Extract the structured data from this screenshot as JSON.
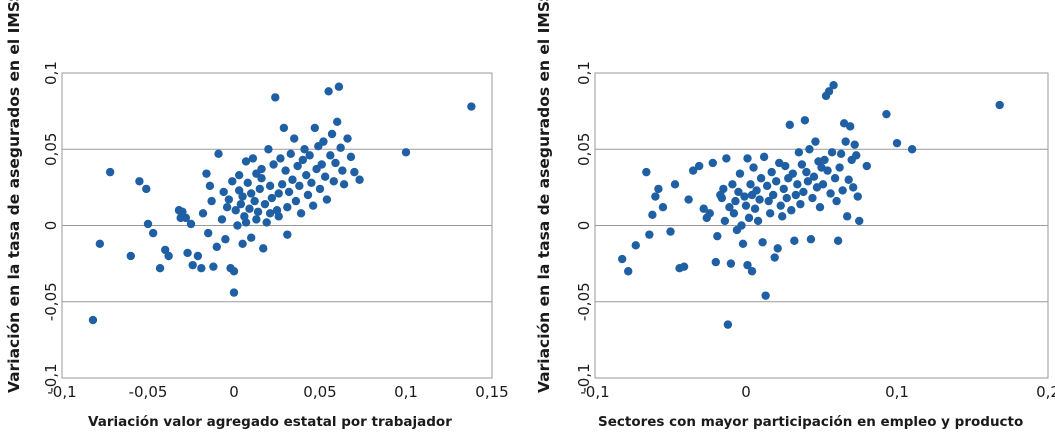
{
  "chart_data": [
    {
      "type": "scatter",
      "xlabel": "Variación valor agregado estatal por trabajador",
      "ylabel": "Variación en la tasa de asegurados en el IMSS",
      "xlim": [
        -0.1,
        0.15
      ],
      "ylim": [
        -0.1,
        0.1
      ],
      "xticks": [
        -0.1,
        -0.05,
        0,
        0.05,
        0.1,
        0.15
      ],
      "yticks": [
        -0.1,
        -0.05,
        0,
        0.05,
        0.1
      ],
      "xtick_labels": [
        "-0,1",
        "-0,05",
        "0",
        "0,05",
        "0,1",
        "0,15"
      ],
      "ytick_labels": [
        "-0,1",
        "-0,05",
        "0",
        "0,05",
        "0,1"
      ],
      "grid": "horizontal",
      "marker_color": "#1f5fa3",
      "points": [
        [
          -0.082,
          -0.062
        ],
        [
          -0.078,
          -0.012
        ],
        [
          -0.072,
          0.035
        ],
        [
          -0.06,
          -0.02
        ],
        [
          -0.055,
          0.029
        ],
        [
          -0.051,
          0.024
        ],
        [
          -0.05,
          0.001
        ],
        [
          -0.047,
          -0.005
        ],
        [
          -0.043,
          -0.028
        ],
        [
          -0.04,
          -0.016
        ],
        [
          -0.038,
          -0.02
        ],
        [
          -0.032,
          0.01
        ],
        [
          -0.031,
          0.005
        ],
        [
          -0.03,
          0.009
        ],
        [
          -0.028,
          0.005
        ],
        [
          -0.027,
          -0.018
        ],
        [
          -0.025,
          0.001
        ],
        [
          -0.024,
          -0.026
        ],
        [
          -0.021,
          -0.02
        ],
        [
          -0.019,
          -0.028
        ],
        [
          -0.018,
          0.008
        ],
        [
          -0.016,
          0.034
        ],
        [
          -0.015,
          -0.005
        ],
        [
          -0.014,
          0.026
        ],
        [
          -0.013,
          0.016
        ],
        [
          -0.012,
          -0.027
        ],
        [
          -0.01,
          -0.014
        ],
        [
          -0.009,
          0.047
        ],
        [
          -0.007,
          0.004
        ],
        [
          -0.006,
          0.022
        ],
        [
          -0.005,
          -0.009
        ],
        [
          -0.004,
          0.012
        ],
        [
          -0.003,
          0.017
        ],
        [
          -0.002,
          -0.028
        ],
        [
          -0.001,
          0.029
        ],
        [
          0.0,
          -0.044
        ],
        [
          0.0,
          -0.03
        ],
        [
          0.001,
          0.01
        ],
        [
          0.002,
          0.0
        ],
        [
          0.003,
          0.023
        ],
        [
          0.003,
          0.033
        ],
        [
          0.004,
          0.014
        ],
        [
          0.005,
          0.019
        ],
        [
          0.005,
          -0.012
        ],
        [
          0.006,
          0.006
        ],
        [
          0.007,
          0.002
        ],
        [
          0.007,
          0.042
        ],
        [
          0.008,
          0.028
        ],
        [
          0.009,
          0.011
        ],
        [
          0.01,
          0.021
        ],
        [
          0.01,
          -0.008
        ],
        [
          0.011,
          0.044
        ],
        [
          0.012,
          0.016
        ],
        [
          0.013,
          0.034
        ],
        [
          0.013,
          0.004
        ],
        [
          0.014,
          0.009
        ],
        [
          0.015,
          0.024
        ],
        [
          0.016,
          0.031
        ],
        [
          0.016,
          0.037
        ],
        [
          0.017,
          -0.015
        ],
        [
          0.018,
          0.014
        ],
        [
          0.019,
          0.002
        ],
        [
          0.02,
          0.05
        ],
        [
          0.021,
          0.026
        ],
        [
          0.021,
          0.008
        ],
        [
          0.022,
          0.018
        ],
        [
          0.023,
          0.04
        ],
        [
          0.024,
          0.084
        ],
        [
          0.025,
          0.01
        ],
        [
          0.026,
          0.021
        ],
        [
          0.026,
          0.006
        ],
        [
          0.027,
          0.044
        ],
        [
          0.028,
          0.027
        ],
        [
          0.029,
          0.064
        ],
        [
          0.03,
          0.036
        ],
        [
          0.031,
          0.012
        ],
        [
          0.031,
          -0.006
        ],
        [
          0.032,
          0.022
        ],
        [
          0.033,
          0.047
        ],
        [
          0.034,
          0.03
        ],
        [
          0.035,
          0.057
        ],
        [
          0.036,
          0.016
        ],
        [
          0.037,
          0.039
        ],
        [
          0.038,
          0.026
        ],
        [
          0.039,
          0.008
        ],
        [
          0.04,
          0.043
        ],
        [
          0.041,
          0.05
        ],
        [
          0.042,
          0.033
        ],
        [
          0.043,
          0.02
        ],
        [
          0.044,
          0.046
        ],
        [
          0.045,
          0.028
        ],
        [
          0.046,
          0.013
        ],
        [
          0.047,
          0.064
        ],
        [
          0.048,
          0.037
        ],
        [
          0.049,
          0.052
        ],
        [
          0.05,
          0.024
        ],
        [
          0.051,
          0.04
        ],
        [
          0.052,
          0.055
        ],
        [
          0.053,
          0.032
        ],
        [
          0.054,
          0.017
        ],
        [
          0.055,
          0.088
        ],
        [
          0.056,
          0.046
        ],
        [
          0.057,
          0.06
        ],
        [
          0.058,
          0.029
        ],
        [
          0.059,
          0.041
        ],
        [
          0.06,
          0.068
        ],
        [
          0.061,
          0.091
        ],
        [
          0.062,
          0.051
        ],
        [
          0.063,
          0.036
        ],
        [
          0.064,
          0.027
        ],
        [
          0.066,
          0.057
        ],
        [
          0.068,
          0.045
        ],
        [
          0.07,
          0.035
        ],
        [
          0.073,
          0.03
        ],
        [
          0.1,
          0.048
        ],
        [
          0.138,
          0.078
        ]
      ]
    },
    {
      "type": "scatter",
      "xlabel": "Sectores con mayor participación en empleo y producto",
      "ylabel": "Variación en la tasa de asegurados en el IMSS",
      "xlim": [
        -0.1,
        0.2
      ],
      "ylim": [
        -0.1,
        0.1
      ],
      "xticks": [
        -0.1,
        0,
        0.1,
        0.2
      ],
      "yticks": [
        -0.1,
        -0.05,
        0,
        0.05,
        0.1
      ],
      "xtick_labels": [
        "-0,1",
        "0",
        "0,1",
        "0,2"
      ],
      "ytick_labels": [
        "-0,1",
        "-0,05",
        "0",
        "0,05",
        "0,1"
      ],
      "grid": "horizontal",
      "marker_color": "#1f5fa3",
      "points": [
        [
          -0.082,
          -0.022
        ],
        [
          -0.078,
          -0.03
        ],
        [
          -0.073,
          -0.013
        ],
        [
          -0.066,
          0.035
        ],
        [
          -0.064,
          -0.006
        ],
        [
          -0.062,
          0.007
        ],
        [
          -0.06,
          0.019
        ],
        [
          -0.058,
          0.024
        ],
        [
          -0.055,
          0.012
        ],
        [
          -0.05,
          -0.004
        ],
        [
          -0.047,
          0.027
        ],
        [
          -0.044,
          -0.028
        ],
        [
          -0.041,
          -0.027
        ],
        [
          -0.038,
          0.017
        ],
        [
          -0.035,
          0.036
        ],
        [
          -0.031,
          0.039
        ],
        [
          -0.028,
          0.011
        ],
        [
          -0.026,
          0.005
        ],
        [
          -0.024,
          0.008
        ],
        [
          -0.022,
          0.041
        ],
        [
          -0.02,
          -0.024
        ],
        [
          -0.019,
          -0.007
        ],
        [
          -0.017,
          0.02
        ],
        [
          -0.016,
          0.018
        ],
        [
          -0.015,
          0.024
        ],
        [
          -0.014,
          0.003
        ],
        [
          -0.013,
          0.044
        ],
        [
          -0.012,
          -0.065
        ],
        [
          -0.011,
          0.012
        ],
        [
          -0.01,
          -0.025
        ],
        [
          -0.009,
          0.027
        ],
        [
          -0.008,
          0.008
        ],
        [
          -0.007,
          0.016
        ],
        [
          -0.006,
          -0.003
        ],
        [
          -0.005,
          0.022
        ],
        [
          -0.004,
          0.034
        ],
        [
          -0.003,
          0.0
        ],
        [
          -0.002,
          -0.012
        ],
        [
          -0.001,
          0.019
        ],
        [
          0.0,
          0.013
        ],
        [
          0.001,
          0.044
        ],
        [
          0.001,
          -0.026
        ],
        [
          0.002,
          0.005
        ],
        [
          0.003,
          0.027
        ],
        [
          0.004,
          0.02
        ],
        [
          0.004,
          -0.03
        ],
        [
          0.005,
          0.038
        ],
        [
          0.006,
          0.011
        ],
        [
          0.007,
          0.023
        ],
        [
          0.008,
          0.003
        ],
        [
          0.009,
          0.017
        ],
        [
          0.01,
          0.031
        ],
        [
          0.011,
          -0.011
        ],
        [
          0.012,
          0.045
        ],
        [
          0.013,
          -0.046
        ],
        [
          0.014,
          0.026
        ],
        [
          0.015,
          0.016
        ],
        [
          0.016,
          0.008
        ],
        [
          0.017,
          0.035
        ],
        [
          0.018,
          0.02
        ],
        [
          0.019,
          -0.021
        ],
        [
          0.02,
          0.029
        ],
        [
          0.021,
          -0.015
        ],
        [
          0.022,
          0.041
        ],
        [
          0.023,
          0.013
        ],
        [
          0.024,
          0.006
        ],
        [
          0.025,
          0.024
        ],
        [
          0.026,
          0.039
        ],
        [
          0.027,
          0.018
        ],
        [
          0.028,
          0.031
        ],
        [
          0.029,
          0.066
        ],
        [
          0.03,
          0.01
        ],
        [
          0.031,
          0.034
        ],
        [
          0.032,
          -0.01
        ],
        [
          0.033,
          0.02
        ],
        [
          0.034,
          0.027
        ],
        [
          0.035,
          0.048
        ],
        [
          0.036,
          0.014
        ],
        [
          0.037,
          0.04
        ],
        [
          0.038,
          0.022
        ],
        [
          0.039,
          0.069
        ],
        [
          0.04,
          0.035
        ],
        [
          0.041,
          0.029
        ],
        [
          0.042,
          0.05
        ],
        [
          0.043,
          -0.009
        ],
        [
          0.044,
          0.018
        ],
        [
          0.045,
          0.032
        ],
        [
          0.046,
          0.055
        ],
        [
          0.047,
          0.025
        ],
        [
          0.048,
          0.042
        ],
        [
          0.049,
          0.012
        ],
        [
          0.05,
          0.038
        ],
        [
          0.051,
          0.027
        ],
        [
          0.052,
          0.043
        ],
        [
          0.053,
          0.085
        ],
        [
          0.054,
          0.036
        ],
        [
          0.055,
          0.088
        ],
        [
          0.056,
          0.021
        ],
        [
          0.057,
          0.048
        ],
        [
          0.058,
          0.092
        ],
        [
          0.059,
          0.031
        ],
        [
          0.06,
          0.016
        ],
        [
          0.061,
          -0.01
        ],
        [
          0.062,
          0.038
        ],
        [
          0.063,
          0.047
        ],
        [
          0.064,
          0.023
        ],
        [
          0.065,
          0.067
        ],
        [
          0.066,
          0.055
        ],
        [
          0.067,
          0.006
        ],
        [
          0.068,
          0.03
        ],
        [
          0.069,
          0.065
        ],
        [
          0.07,
          0.043
        ],
        [
          0.071,
          0.025
        ],
        [
          0.072,
          0.053
        ],
        [
          0.073,
          0.046
        ],
        [
          0.074,
          0.019
        ],
        [
          0.075,
          0.003
        ],
        [
          0.08,
          0.039
        ],
        [
          0.093,
          0.073
        ],
        [
          0.1,
          0.054
        ],
        [
          0.11,
          0.05
        ],
        [
          0.168,
          0.079
        ]
      ]
    }
  ]
}
